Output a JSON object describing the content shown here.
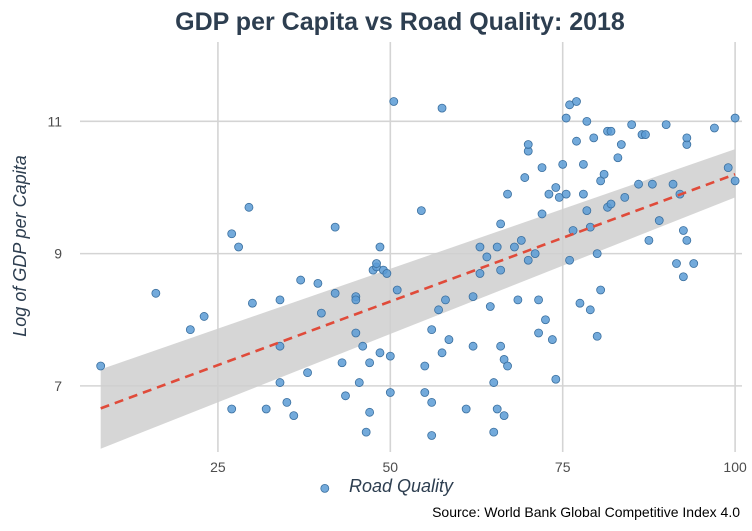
{
  "chart_data": {
    "type": "scatter",
    "title": "GDP per Capita vs Road Quality: 2018",
    "xlabel": "Road Quality",
    "ylabel": "Log of GDP per Capita",
    "caption": "Source: World Bank Global Competitive Index 4.0",
    "xlim": [
      5,
      101
    ],
    "ylim": [
      6.0,
      12.2
    ],
    "x_ticks": [
      25,
      50,
      75,
      100
    ],
    "y_ticks": [
      7,
      9,
      11
    ],
    "grid": true,
    "colors": {
      "points": "#5b9bd5",
      "point_stroke": "#3a6f9f",
      "trend": "#e04b3a",
      "band": "#cfcfcf",
      "title": "#2d3e50"
    },
    "trend": {
      "type": "linear",
      "x_start": 8,
      "y_start": 6.66,
      "x_end": 100,
      "y_end": 10.2,
      "ci_start": [
        6.05,
        7.25
      ],
      "ci_end": [
        9.85,
        10.58
      ]
    },
    "points": [
      [
        8,
        7.3
      ],
      [
        16,
        8.4
      ],
      [
        21,
        7.85
      ],
      [
        23,
        8.05
      ],
      [
        27,
        9.3
      ],
      [
        27,
        6.65
      ],
      [
        28,
        9.1
      ],
      [
        29.5,
        9.7
      ],
      [
        30,
        8.25
      ],
      [
        32,
        6.65
      ],
      [
        34,
        7.05
      ],
      [
        34,
        7.6
      ],
      [
        34,
        8.3
      ],
      [
        35,
        6.75
      ],
      [
        36,
        6.55
      ],
      [
        37,
        8.6
      ],
      [
        38,
        7.2
      ],
      [
        39.5,
        8.55
      ],
      [
        40,
        8.1
      ],
      [
        40.5,
        5.45
      ],
      [
        42,
        8.4
      ],
      [
        42,
        9.4
      ],
      [
        43,
        7.35
      ],
      [
        43.5,
        6.85
      ],
      [
        45,
        7.8
      ],
      [
        45,
        8.35
      ],
      [
        45,
        8.3
      ],
      [
        45.5,
        7.05
      ],
      [
        46,
        7.6
      ],
      [
        46.5,
        6.3
      ],
      [
        47,
        6.6
      ],
      [
        47,
        7.35
      ],
      [
        47.5,
        8.75
      ],
      [
        48,
        8.8
      ],
      [
        48,
        8.85
      ],
      [
        48.5,
        9.1
      ],
      [
        48.5,
        7.5
      ],
      [
        49,
        8.75
      ],
      [
        49.5,
        8.7
      ],
      [
        50,
        7.45
      ],
      [
        50,
        6.9
      ],
      [
        50.5,
        11.3
      ],
      [
        51,
        8.45
      ],
      [
        54.5,
        9.65
      ],
      [
        55,
        7.3
      ],
      [
        55,
        6.9
      ],
      [
        56,
        6.25
      ],
      [
        56,
        6.75
      ],
      [
        56,
        7.85
      ],
      [
        57,
        8.15
      ],
      [
        57.5,
        7.5
      ],
      [
        57.5,
        11.2
      ],
      [
        58,
        8.3
      ],
      [
        58.5,
        7.7
      ],
      [
        61,
        6.65
      ],
      [
        62,
        7.6
      ],
      [
        62,
        8.35
      ],
      [
        63,
        8.7
      ],
      [
        63,
        9.1
      ],
      [
        64,
        8.95
      ],
      [
        64.5,
        8.2
      ],
      [
        65,
        6.3
      ],
      [
        65,
        7.05
      ],
      [
        65.5,
        9.1
      ],
      [
        65.5,
        6.65
      ],
      [
        66,
        8.75
      ],
      [
        66,
        9.45
      ],
      [
        66,
        7.6
      ],
      [
        66.5,
        6.55
      ],
      [
        66.5,
        7.4
      ],
      [
        67,
        7.3
      ],
      [
        67,
        9.9
      ],
      [
        68,
        9.1
      ],
      [
        68.5,
        8.3
      ],
      [
        69,
        9.2
      ],
      [
        69.5,
        10.15
      ],
      [
        70,
        10.55
      ],
      [
        70,
        10.65
      ],
      [
        70,
        8.9
      ],
      [
        71,
        9.0
      ],
      [
        71.5,
        7.8
      ],
      [
        71.5,
        8.3
      ],
      [
        72,
        9.6
      ],
      [
        72,
        10.3
      ],
      [
        72.5,
        8.0
      ],
      [
        73,
        9.9
      ],
      [
        73.5,
        7.7
      ],
      [
        74,
        10.0
      ],
      [
        74,
        7.1
      ],
      [
        74.5,
        9.85
      ],
      [
        75,
        10.35
      ],
      [
        75.5,
        9.9
      ],
      [
        75.5,
        11.05
      ],
      [
        76,
        8.9
      ],
      [
        76,
        11.25
      ],
      [
        76.5,
        9.35
      ],
      [
        77,
        10.7
      ],
      [
        77,
        11.3
      ],
      [
        77.5,
        8.25
      ],
      [
        78,
        9.9
      ],
      [
        78,
        10.35
      ],
      [
        78.5,
        9.65
      ],
      [
        78.5,
        11.0
      ],
      [
        79,
        9.4
      ],
      [
        79,
        8.15
      ],
      [
        79.5,
        10.75
      ],
      [
        80,
        9.0
      ],
      [
        80,
        7.75
      ],
      [
        80.5,
        10.1
      ],
      [
        80.5,
        8.45
      ],
      [
        81,
        10.2
      ],
      [
        81.5,
        10.85
      ],
      [
        81.5,
        9.7
      ],
      [
        82,
        9.75
      ],
      [
        82,
        10.85
      ],
      [
        83,
        10.45
      ],
      [
        83.5,
        10.65
      ],
      [
        84,
        9.85
      ],
      [
        85,
        10.95
      ],
      [
        86,
        10.05
      ],
      [
        86.5,
        10.8
      ],
      [
        87,
        10.8
      ],
      [
        87.5,
        9.2
      ],
      [
        88,
        10.05
      ],
      [
        89,
        9.5
      ],
      [
        90,
        10.95
      ],
      [
        91,
        10.05
      ],
      [
        91.5,
        8.85
      ],
      [
        92,
        9.9
      ],
      [
        92.5,
        8.65
      ],
      [
        92.5,
        9.35
      ],
      [
        93,
        10.65
      ],
      [
        93,
        9.2
      ],
      [
        93,
        10.75
      ],
      [
        94,
        8.85
      ],
      [
        97,
        10.9
      ],
      [
        99,
        10.3
      ],
      [
        100,
        11.05
      ],
      [
        100,
        10.1
      ]
    ]
  }
}
